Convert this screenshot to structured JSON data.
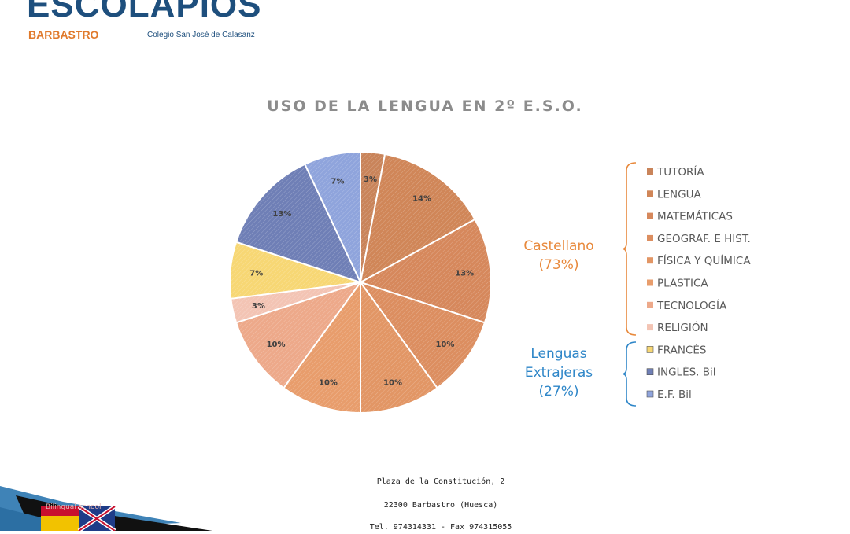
{
  "header": {
    "logo_main": "ESCOLAPIOS",
    "logo_city": "BARBASTRO",
    "logo_school": "Colegio San José de Calasanz"
  },
  "chart_data": {
    "type": "pie",
    "title": "USO DE LA LENGUA EN 2º E.S.O.",
    "slices": [
      {
        "label": "TUTORÍA",
        "value": 3,
        "value_label": "3%",
        "color": "#c9845a",
        "group": "castellano"
      },
      {
        "label": "LENGUA",
        "value": 14,
        "value_label": "14%",
        "color": "#d08658",
        "group": "castellano"
      },
      {
        "label": "MATEMÁTICAS",
        "value": 13,
        "value_label": "13%",
        "color": "#d6885c",
        "group": "castellano"
      },
      {
        "label": "GEOGRAF. E HIST.",
        "value": 10,
        "value_label": "10%",
        "color": "#dc8e60",
        "group": "castellano"
      },
      {
        "label": "FÍSICA Y QUÍMICA",
        "value": 10,
        "value_label": "10%",
        "color": "#e29665",
        "group": "castellano"
      },
      {
        "label": "PLASTICA",
        "value": 10,
        "value_label": "10%",
        "color": "#e89d6c",
        "group": "castellano"
      },
      {
        "label": "TECNOLOGÍA",
        "value": 10,
        "value_label": "10%",
        "color": "#eda98a",
        "group": "castellano"
      },
      {
        "label": "RELIGIÓN",
        "value": 3,
        "value_label": "3%",
        "color": "#f3c4b4",
        "group": "castellano"
      },
      {
        "label": "FRANCÉS",
        "value": 7,
        "value_label": "7%",
        "color": "#f7d774",
        "group": "extranjeras"
      },
      {
        "label": "INGLÉS. Bil",
        "value": 13,
        "value_label": "13%",
        "color": "#6f7fb6",
        "group": "extranjeras"
      },
      {
        "label": "E.F. Bil",
        "value": 7,
        "value_label": "7%",
        "color": "#8fa4dc",
        "group": "extranjeras"
      }
    ],
    "groups": [
      {
        "id": "castellano",
        "line1": "Castellano",
        "line2": "(73%)",
        "color": "#e8893c"
      },
      {
        "id": "extranjeras",
        "line1": "Lenguas",
        "line2": "Extrajeras",
        "line3": "(27%)",
        "color": "#2e86c8"
      }
    ]
  },
  "footer": {
    "address": "Plaza de la Constitución, 2",
    "city": "22300 Barbastro (Huesca)",
    "contact": "Tel. 974314331  -  Fax 974315055"
  },
  "badge": {
    "text": "Bilingual school"
  }
}
